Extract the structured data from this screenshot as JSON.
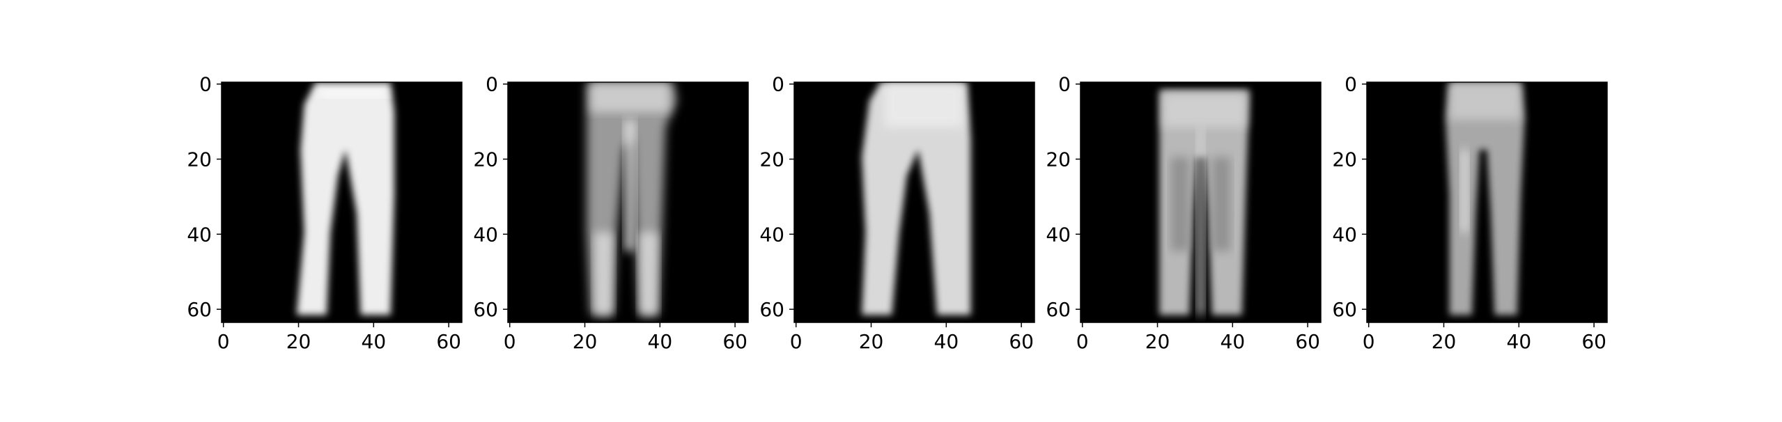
{
  "figure": {
    "background": "#ffffff",
    "image_background": "#000000",
    "axes_color": "#000000",
    "x_ticks": [
      "0",
      "20",
      "40",
      "60"
    ],
    "y_ticks": [
      "0",
      "20",
      "40",
      "60"
    ],
    "axis_range": [
      0,
      64
    ],
    "panels": [
      {
        "name": "pants-image-1",
        "description_icon": "image-trousers-bright-wide"
      },
      {
        "name": "pants-image-2",
        "description_icon": "image-trousers-dim-textured"
      },
      {
        "name": "pants-image-3",
        "description_icon": "image-trousers-bright-wide"
      },
      {
        "name": "pants-image-4",
        "description_icon": "image-trousers-textured"
      },
      {
        "name": "pants-image-5",
        "description_icon": "image-trousers-narrow"
      }
    ]
  }
}
